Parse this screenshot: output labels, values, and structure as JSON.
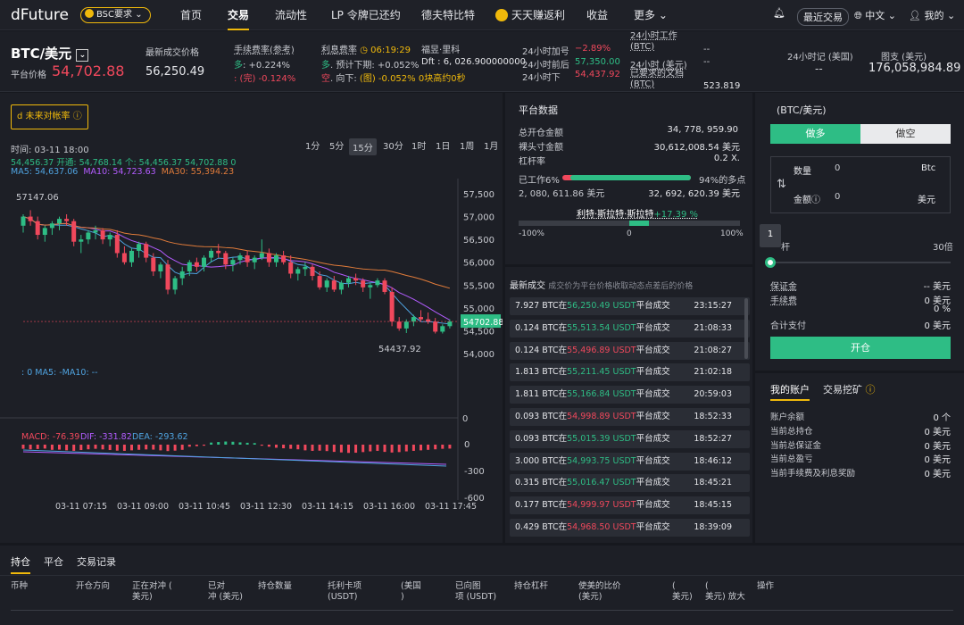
{
  "brand": {
    "logo_a": "dFuture",
    "logo_b": "",
    "network": "BSC要求"
  },
  "nav": [
    "首页",
    "交易",
    "流动性",
    "LP 令牌已还约",
    "德夫特比特",
    "天天赚返利",
    "收益",
    "更多"
  ],
  "topright": {
    "recent": "最近交易",
    "lang": "中文",
    "account": "我的"
  },
  "ticker": {
    "pair": "BTC/美元",
    "platform_price_label": "平台价格",
    "platform_price": "54,702.88",
    "last_label": "最新成交价格",
    "last_price": "56,250.49",
    "fee_label": "手续费率(参考)",
    "fee_long_prefix": "多",
    "fee_long": ": +0.224%",
    "fee_short_prefix": ":  (完)",
    "fee_short": "-0.124%",
    "interest_label": "利息费率",
    "interest_time": "06:19:29",
    "interest_long_prefix": "多",
    "interest_long": ". 预计下期: +0.052%",
    "interest_short_prefix": "空",
    "interest_short": ". 向下:",
    "interest_short_b": "(图)",
    "interest_short_val": "-0.052%",
    "interest_short_c": "0块高约0秒",
    "fub_label": "福昱·里科",
    "fub_val": "Dft : 6, 026.900000000",
    "h24_add_label": "24小时加号",
    "h24_add_val": "−2.89%",
    "h24_before_label": "24小时前后",
    "h24_before_val": "57,350.00",
    "h24_low_label": "24小时下",
    "h24_low_val": "54,437.92",
    "work_label": "24小时工作\n(BTC)",
    "work_val": "--",
    "usd_label": "24小时 (美元)",
    "usd_val": "--",
    "doc_label": "已要求的文档\n(BTC)",
    "doc_val": "523.819",
    "time_label": "24小时记 (美国)",
    "time_val": "--",
    "chart_label": "图支 (美元)",
    "chart_val": "176,058,984.89"
  },
  "left": {
    "funding_btn": "d 未来对帐率",
    "ohlc_time": "时间: 03-11 18:00",
    "ohlc_line": "54,456.37   开通: 54,768.14   个: 54,456.37   54,702.88   0",
    "ma_line": {
      "ma5": "MA5: 54,637.06",
      "ma10": "MA10: 54,723.63",
      "ma30": "MA30: 55,394.23"
    },
    "timeframes": [
      "1分",
      "5分",
      "15分",
      "30分",
      "1时",
      "1日",
      "1周",
      "1月"
    ],
    "high_mark": "57147.06",
    "low_mark": "54437.92",
    "price_tag": "54702.88",
    "vol_line": ": 0   MA5: -MA10: --",
    "macd_line": {
      "macd": "MACD: -76.39",
      "dif": "DIF: -331.82",
      "dea": "DEA: -293.62"
    },
    "y_axis": [
      "57,500",
      "57,000",
      "56,500",
      "56,000",
      "55,500",
      "55,000",
      "54,500",
      "54,000"
    ],
    "vol_axis": "0",
    "macd_axis": [
      "0",
      "-300",
      "-600"
    ],
    "x_axis": [
      "03-11 07:15",
      "03-11 09:00",
      "03-11 10:45",
      "03-11 12:30",
      "03-11 14:15",
      "03-11 16:00",
      "03-11 17:45"
    ]
  },
  "platform": {
    "title": "平台数据",
    "rows": [
      {
        "k": "总开仓金额",
        "v": "34, 778, 959.90"
      },
      {
        "k": "裸头寸金额",
        "v": "30,612,008.54 美元"
      },
      {
        "k": "杠杆率",
        "v": "0.2 X."
      }
    ],
    "short_label": "已工作6%",
    "long_label": "94%的多点",
    "short_amt": "2, 080, 611.86 美元",
    "long_amt": "32, 692, 620.39 美元",
    "gauge_label": "利特·斯拉特·斯拉特",
    "gauge_pct": "+17.39 %",
    "gauge_min": "-100%",
    "gauge_mid": "0",
    "gauge_max": "100%",
    "long_share": 0.94
  },
  "trades": {
    "title": "最新成交",
    "subtitle": "成交价为平台价格收取动态点差后的价格",
    "rows": [
      {
        "amt": "7.927 BTC在",
        "price": "56,250.49 USDT",
        "c": "g",
        "t": "23:15:27"
      },
      {
        "amt": "0.124 BTC在",
        "price": "55,513.54 USDT",
        "c": "g",
        "t": "21:08:33"
      },
      {
        "amt": "0.124 BTC在",
        "price": "55,496.89 USDT",
        "c": "r",
        "t": "21:08:27"
      },
      {
        "amt": "1.813 BTC在",
        "price": "55,211.45 USDT",
        "c": "g",
        "t": "21:02:18"
      },
      {
        "amt": "1.811 BTC在",
        "price": "55,166.84 USDT",
        "c": "g",
        "t": "20:59:03"
      },
      {
        "amt": "0.093 BTC在",
        "price": "54,998.89 USDT",
        "c": "r",
        "t": "18:52:33"
      },
      {
        "amt": "0.093 BTC在",
        "price": "55,015.39 USDT",
        "c": "g",
        "t": "18:52:27"
      },
      {
        "amt": "3.000 BTC在",
        "price": "54,993.75 USDT",
        "c": "g",
        "t": "18:46:12"
      },
      {
        "amt": "0.315 BTC在",
        "price": "55,016.47 USDT",
        "c": "g",
        "t": "18:45:21"
      },
      {
        "amt": "0.177 BTC在",
        "price": "54,999.97 USDT",
        "c": "r",
        "t": "18:45:15"
      },
      {
        "amt": "0.429 BTC在",
        "price": "54,968.50 USDT",
        "c": "r",
        "t": "18:39:09"
      }
    ],
    "suffix": "平台成交"
  },
  "order": {
    "pair": "(BTC/美元)",
    "long_btn": "做多",
    "short_btn": "做空",
    "qty_label": "数量",
    "qty_val": "0",
    "qty_unit": "Btc",
    "amt_label": "金额",
    "amt_val": "0",
    "amt_unit": "美元",
    "lev_badge": "1",
    "lev_left": "杆",
    "lev_right": "30倍",
    "margin_label": "保证金",
    "margin_val": "-- 美元",
    "fee_label": "手续费",
    "fee_val": "0 美元",
    "fee_pct": "0 %",
    "total_label": "合计支付",
    "total_val": "0 美元",
    "open_btn": "开仓"
  },
  "account": {
    "tab1": "我的账户",
    "tab2": "交易挖矿",
    "rows": [
      {
        "k": "账户余额",
        "v": "0 个"
      },
      {
        "k": "当前总持仓",
        "v": "0 美元"
      },
      {
        "k": "当前总保证金",
        "v": "0 美元"
      },
      {
        "k": "当前总盈亏",
        "v": "0 美元"
      },
      {
        "k": "当前手续费及利息奖励",
        "v": "0 美元"
      }
    ]
  },
  "bottom": {
    "tabs": [
      "持仓",
      "平仓",
      "交易记录"
    ],
    "cols": [
      "币种",
      "开仓方向",
      "正在对冲 (\n美元)",
      "已对\n冲 (美元)",
      "持仓数量",
      "托利卡项\n(USDT)",
      "(美国\n)",
      "已向图\n项 (USDT)",
      "持仓杠杆",
      "使美的比价\n(美元)",
      "(\n美元)",
      "(\n美元) 放大",
      "操作"
    ]
  },
  "chart_data": {
    "type": "candlestick",
    "ylim": [
      54000,
      57500
    ],
    "candles": [
      [
        56800,
        57050,
        56650,
        57000
      ],
      [
        57000,
        57140,
        56800,
        56900
      ],
      [
        56900,
        57000,
        56500,
        56600
      ],
      [
        56600,
        56800,
        56450,
        56750
      ],
      [
        56750,
        56900,
        56600,
        56850
      ],
      [
        56850,
        57000,
        56700,
        56950
      ],
      [
        56950,
        57050,
        56800,
        56900
      ],
      [
        56900,
        56950,
        56350,
        56450
      ],
      [
        56450,
        56600,
        56200,
        56500
      ],
      [
        56500,
        56700,
        56400,
        56650
      ],
      [
        56650,
        56800,
        56500,
        56700
      ],
      [
        56700,
        56750,
        56400,
        56500
      ],
      [
        56500,
        56650,
        56350,
        56600
      ],
      [
        56600,
        56700,
        56100,
        56200
      ],
      [
        56200,
        56350,
        55950,
        56000
      ],
      [
        56000,
        56300,
        55900,
        56250
      ],
      [
        56250,
        56450,
        56100,
        56400
      ],
      [
        56400,
        56450,
        56000,
        56100
      ],
      [
        56100,
        56200,
        55700,
        55800
      ],
      [
        55800,
        56000,
        55650,
        55950
      ],
      [
        55950,
        56050,
        55300,
        55400
      ],
      [
        55400,
        55700,
        55300,
        55650
      ],
      [
        55650,
        55900,
        55500,
        55800
      ],
      [
        55800,
        56050,
        55700,
        56000
      ],
      [
        56000,
        56100,
        55800,
        55900
      ],
      [
        55900,
        56150,
        55800,
        56100
      ],
      [
        56100,
        56300,
        56000,
        56250
      ],
      [
        56250,
        56400,
        56100,
        56200
      ],
      [
        56200,
        56250,
        55850,
        55950
      ],
      [
        55950,
        56100,
        55800,
        56050
      ],
      [
        56050,
        56200,
        55950,
        56150
      ],
      [
        56150,
        56250,
        55900,
        56000
      ],
      [
        56000,
        56150,
        55850,
        56100
      ],
      [
        56100,
        56500,
        56050,
        56200
      ],
      [
        56200,
        56300,
        55900,
        56000
      ],
      [
        56000,
        56200,
        55900,
        56150
      ],
      [
        56150,
        56250,
        55950,
        56000
      ],
      [
        56000,
        56150,
        55650,
        55750
      ],
      [
        55750,
        55900,
        55600,
        55850
      ],
      [
        55850,
        56000,
        55700,
        55900
      ],
      [
        55900,
        55950,
        55600,
        55700
      ],
      [
        55700,
        55800,
        55400,
        55450
      ],
      [
        55450,
        55650,
        55350,
        55600
      ],
      [
        55600,
        55700,
        55350,
        55400
      ],
      [
        55400,
        55600,
        55300,
        55550
      ],
      [
        55550,
        55700,
        55450,
        55650
      ],
      [
        55650,
        55750,
        55500,
        55600
      ],
      [
        55600,
        55650,
        55350,
        55450
      ],
      [
        55450,
        55550,
        55200,
        55500
      ],
      [
        55500,
        55650,
        55450,
        55600
      ],
      [
        55600,
        55650,
        55300,
        55350
      ],
      [
        55350,
        55450,
        54600,
        54700
      ],
      [
        54700,
        54800,
        54500,
        54550
      ],
      [
        54550,
        54750,
        54450,
        54700
      ],
      [
        54700,
        54850,
        54600,
        54800
      ],
      [
        54800,
        54950,
        54700,
        54750
      ],
      [
        54750,
        54900,
        54650,
        54700
      ],
      [
        54700,
        54780,
        54440,
        54480
      ],
      [
        54480,
        54640,
        54440,
        54600
      ],
      [
        54600,
        54750,
        54550,
        54703
      ]
    ],
    "macd_hist": [
      -40,
      -45,
      -42,
      -38,
      -50,
      -48,
      -55,
      -60,
      -52,
      -45,
      -40,
      -46,
      -52,
      -58,
      -60,
      -55,
      -50,
      -46,
      -48,
      -55,
      -62,
      -58,
      -50,
      -20,
      -15,
      -10,
      20,
      25,
      30,
      28,
      22,
      18,
      15,
      -10,
      -20,
      -30,
      -35,
      -40,
      -45,
      -55,
      -60,
      -58,
      -62,
      -70,
      -75,
      -80,
      -78,
      -72,
      -65,
      -60,
      -70,
      -76,
      -72,
      -65,
      -60,
      -55,
      -50,
      -45,
      -40,
      -38
    ]
  }
}
